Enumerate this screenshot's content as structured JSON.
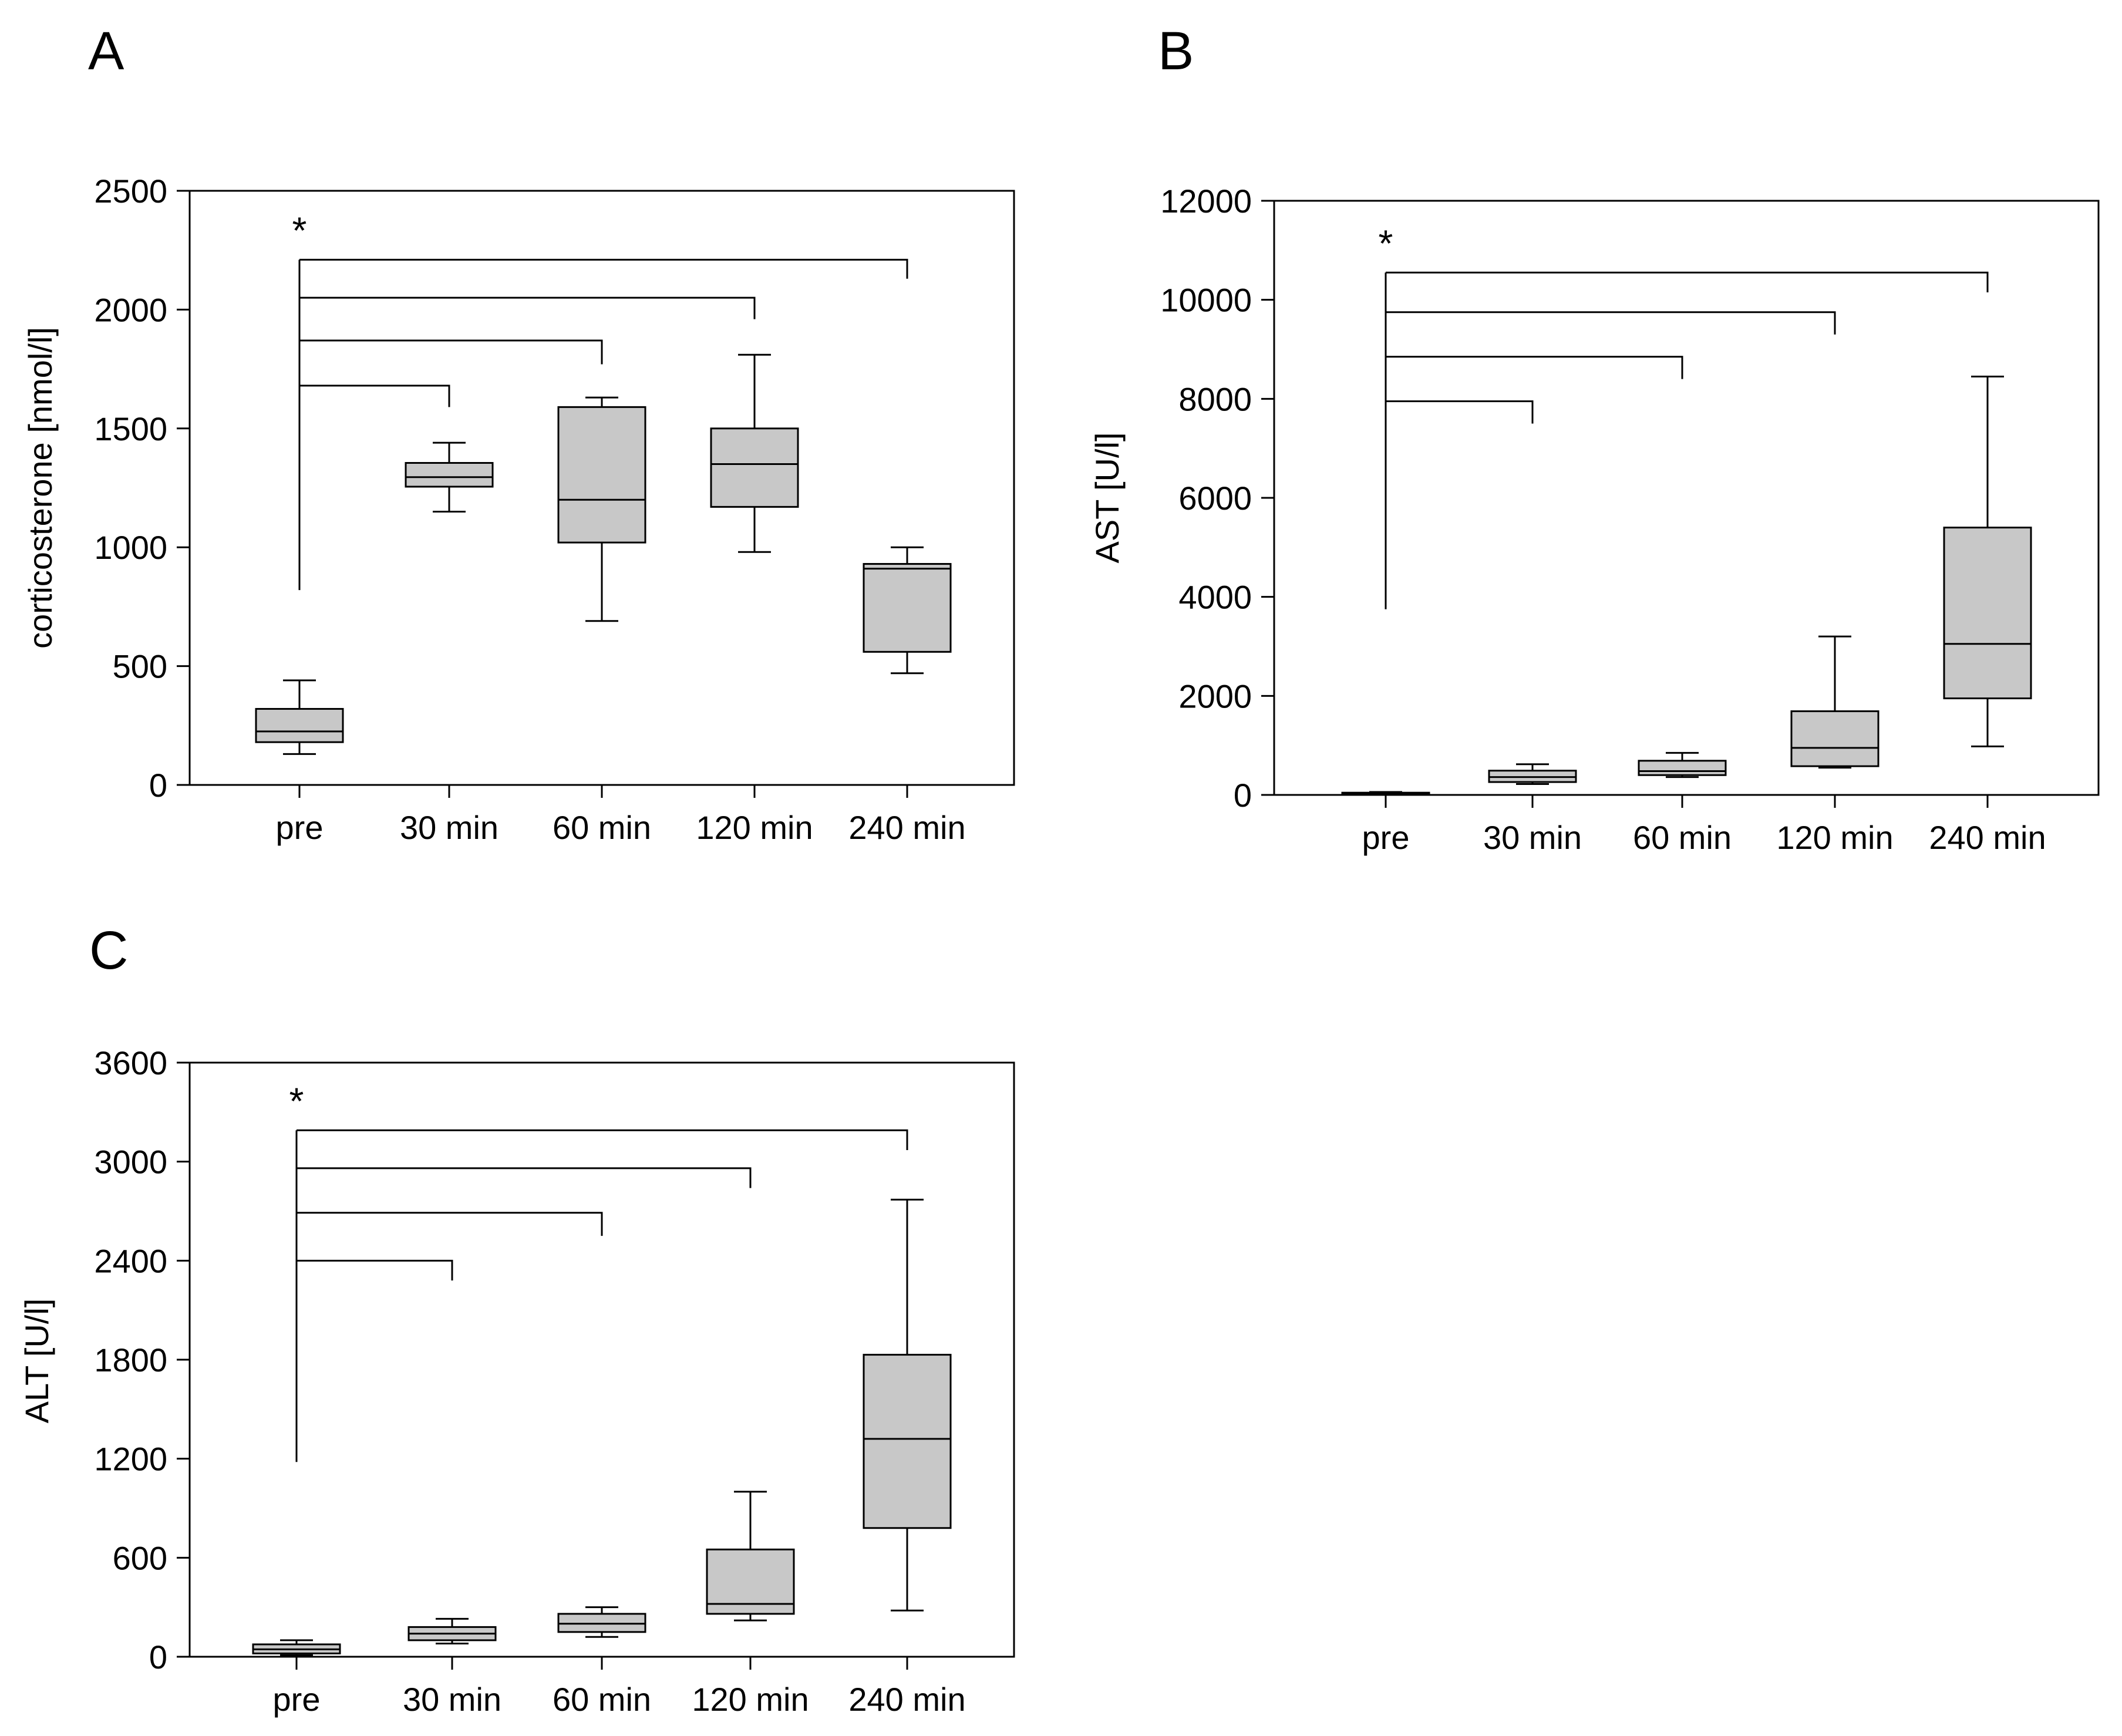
{
  "figure": {
    "box_fill": "#c8c8c8",
    "line_color": "#000000"
  },
  "chart_data": [
    {
      "type": "boxplot",
      "panel_label": "A",
      "ylabel": "corticosterone [nmol/l]",
      "xlabel": "",
      "ylim": [
        0,
        2500
      ],
      "yticks": [
        0,
        500,
        1000,
        1500,
        2000,
        2500
      ],
      "categories": [
        "pre",
        "30 min",
        "60 min",
        "120 min",
        "240 min"
      ],
      "boxes": [
        {
          "min": 130,
          "q1": 180,
          "median": 225,
          "q3": 320,
          "max": 440
        },
        {
          "min": 1150,
          "q1": 1255,
          "median": 1295,
          "q3": 1355,
          "max": 1440
        },
        {
          "min": 690,
          "q1": 1020,
          "median": 1200,
          "q3": 1590,
          "max": 1630
        },
        {
          "min": 980,
          "q1": 1170,
          "median": 1350,
          "q3": 1500,
          "max": 1810
        },
        {
          "min": 470,
          "q1": 560,
          "median": 910,
          "q3": 930,
          "max": 1000
        }
      ],
      "significance": {
        "label": "*",
        "reference": "pre",
        "anchor_value": 820,
        "brackets": [
          {
            "to": "30 min",
            "level": 1680,
            "tip": 1590
          },
          {
            "to": "60 min",
            "level": 1870,
            "tip": 1770
          },
          {
            "to": "120 min",
            "level": 2050,
            "tip": 1960
          },
          {
            "to": "240 min",
            "level": 2210,
            "tip": 2130
          }
        ]
      }
    },
    {
      "type": "boxplot",
      "panel_label": "B",
      "ylabel": "AST [U/l]",
      "xlabel": "",
      "ylim": [
        0,
        12000
      ],
      "yticks": [
        0,
        2000,
        4000,
        6000,
        8000,
        10000,
        12000
      ],
      "categories": [
        "pre",
        "30 min",
        "60 min",
        "120 min",
        "240 min"
      ],
      "boxes": [
        {
          "min": 10,
          "q1": 15,
          "median": 30,
          "q3": 45,
          "max": 60
        },
        {
          "min": 220,
          "q1": 260,
          "median": 360,
          "q3": 490,
          "max": 620
        },
        {
          "min": 360,
          "q1": 400,
          "median": 480,
          "q3": 690,
          "max": 850
        },
        {
          "min": 550,
          "q1": 580,
          "median": 950,
          "q3": 1690,
          "max": 3200
        },
        {
          "min": 980,
          "q1": 1950,
          "median": 3050,
          "q3": 5400,
          "max": 8450
        }
      ],
      "significance": {
        "label": "*",
        "reference": "pre",
        "anchor_value": 3750,
        "brackets": [
          {
            "to": "30 min",
            "level": 7950,
            "tip": 7500
          },
          {
            "to": "60 min",
            "level": 8850,
            "tip": 8400
          },
          {
            "to": "120 min",
            "level": 9750,
            "tip": 9300
          },
          {
            "to": "240 min",
            "level": 10550,
            "tip": 10150
          }
        ]
      }
    },
    {
      "type": "boxplot",
      "panel_label": "C",
      "ylabel": "ALT [U/l]",
      "xlabel": "",
      "ylim": [
        0,
        3600
      ],
      "yticks": [
        0,
        600,
        1200,
        1800,
        2400,
        3000,
        3600
      ],
      "categories": [
        "pre",
        "30 min",
        "60 min",
        "120 min",
        "240 min"
      ],
      "boxes": [
        {
          "min": 10,
          "q1": 20,
          "median": 45,
          "q3": 75,
          "max": 100
        },
        {
          "min": 80,
          "q1": 100,
          "median": 140,
          "q3": 180,
          "max": 230
        },
        {
          "min": 120,
          "q1": 150,
          "median": 200,
          "q3": 260,
          "max": 300
        },
        {
          "min": 220,
          "q1": 260,
          "median": 320,
          "q3": 650,
          "max": 1000
        },
        {
          "min": 280,
          "q1": 780,
          "median": 1320,
          "q3": 1830,
          "max": 2770
        }
      ],
      "significance": {
        "label": "*",
        "reference": "pre",
        "anchor_value": 1180,
        "brackets": [
          {
            "to": "30 min",
            "level": 2400,
            "tip": 2280
          },
          {
            "to": "60 min",
            "level": 2690,
            "tip": 2550
          },
          {
            "to": "120 min",
            "level": 2960,
            "tip": 2840
          },
          {
            "to": "240 min",
            "level": 3190,
            "tip": 3070
          }
        ]
      }
    }
  ]
}
